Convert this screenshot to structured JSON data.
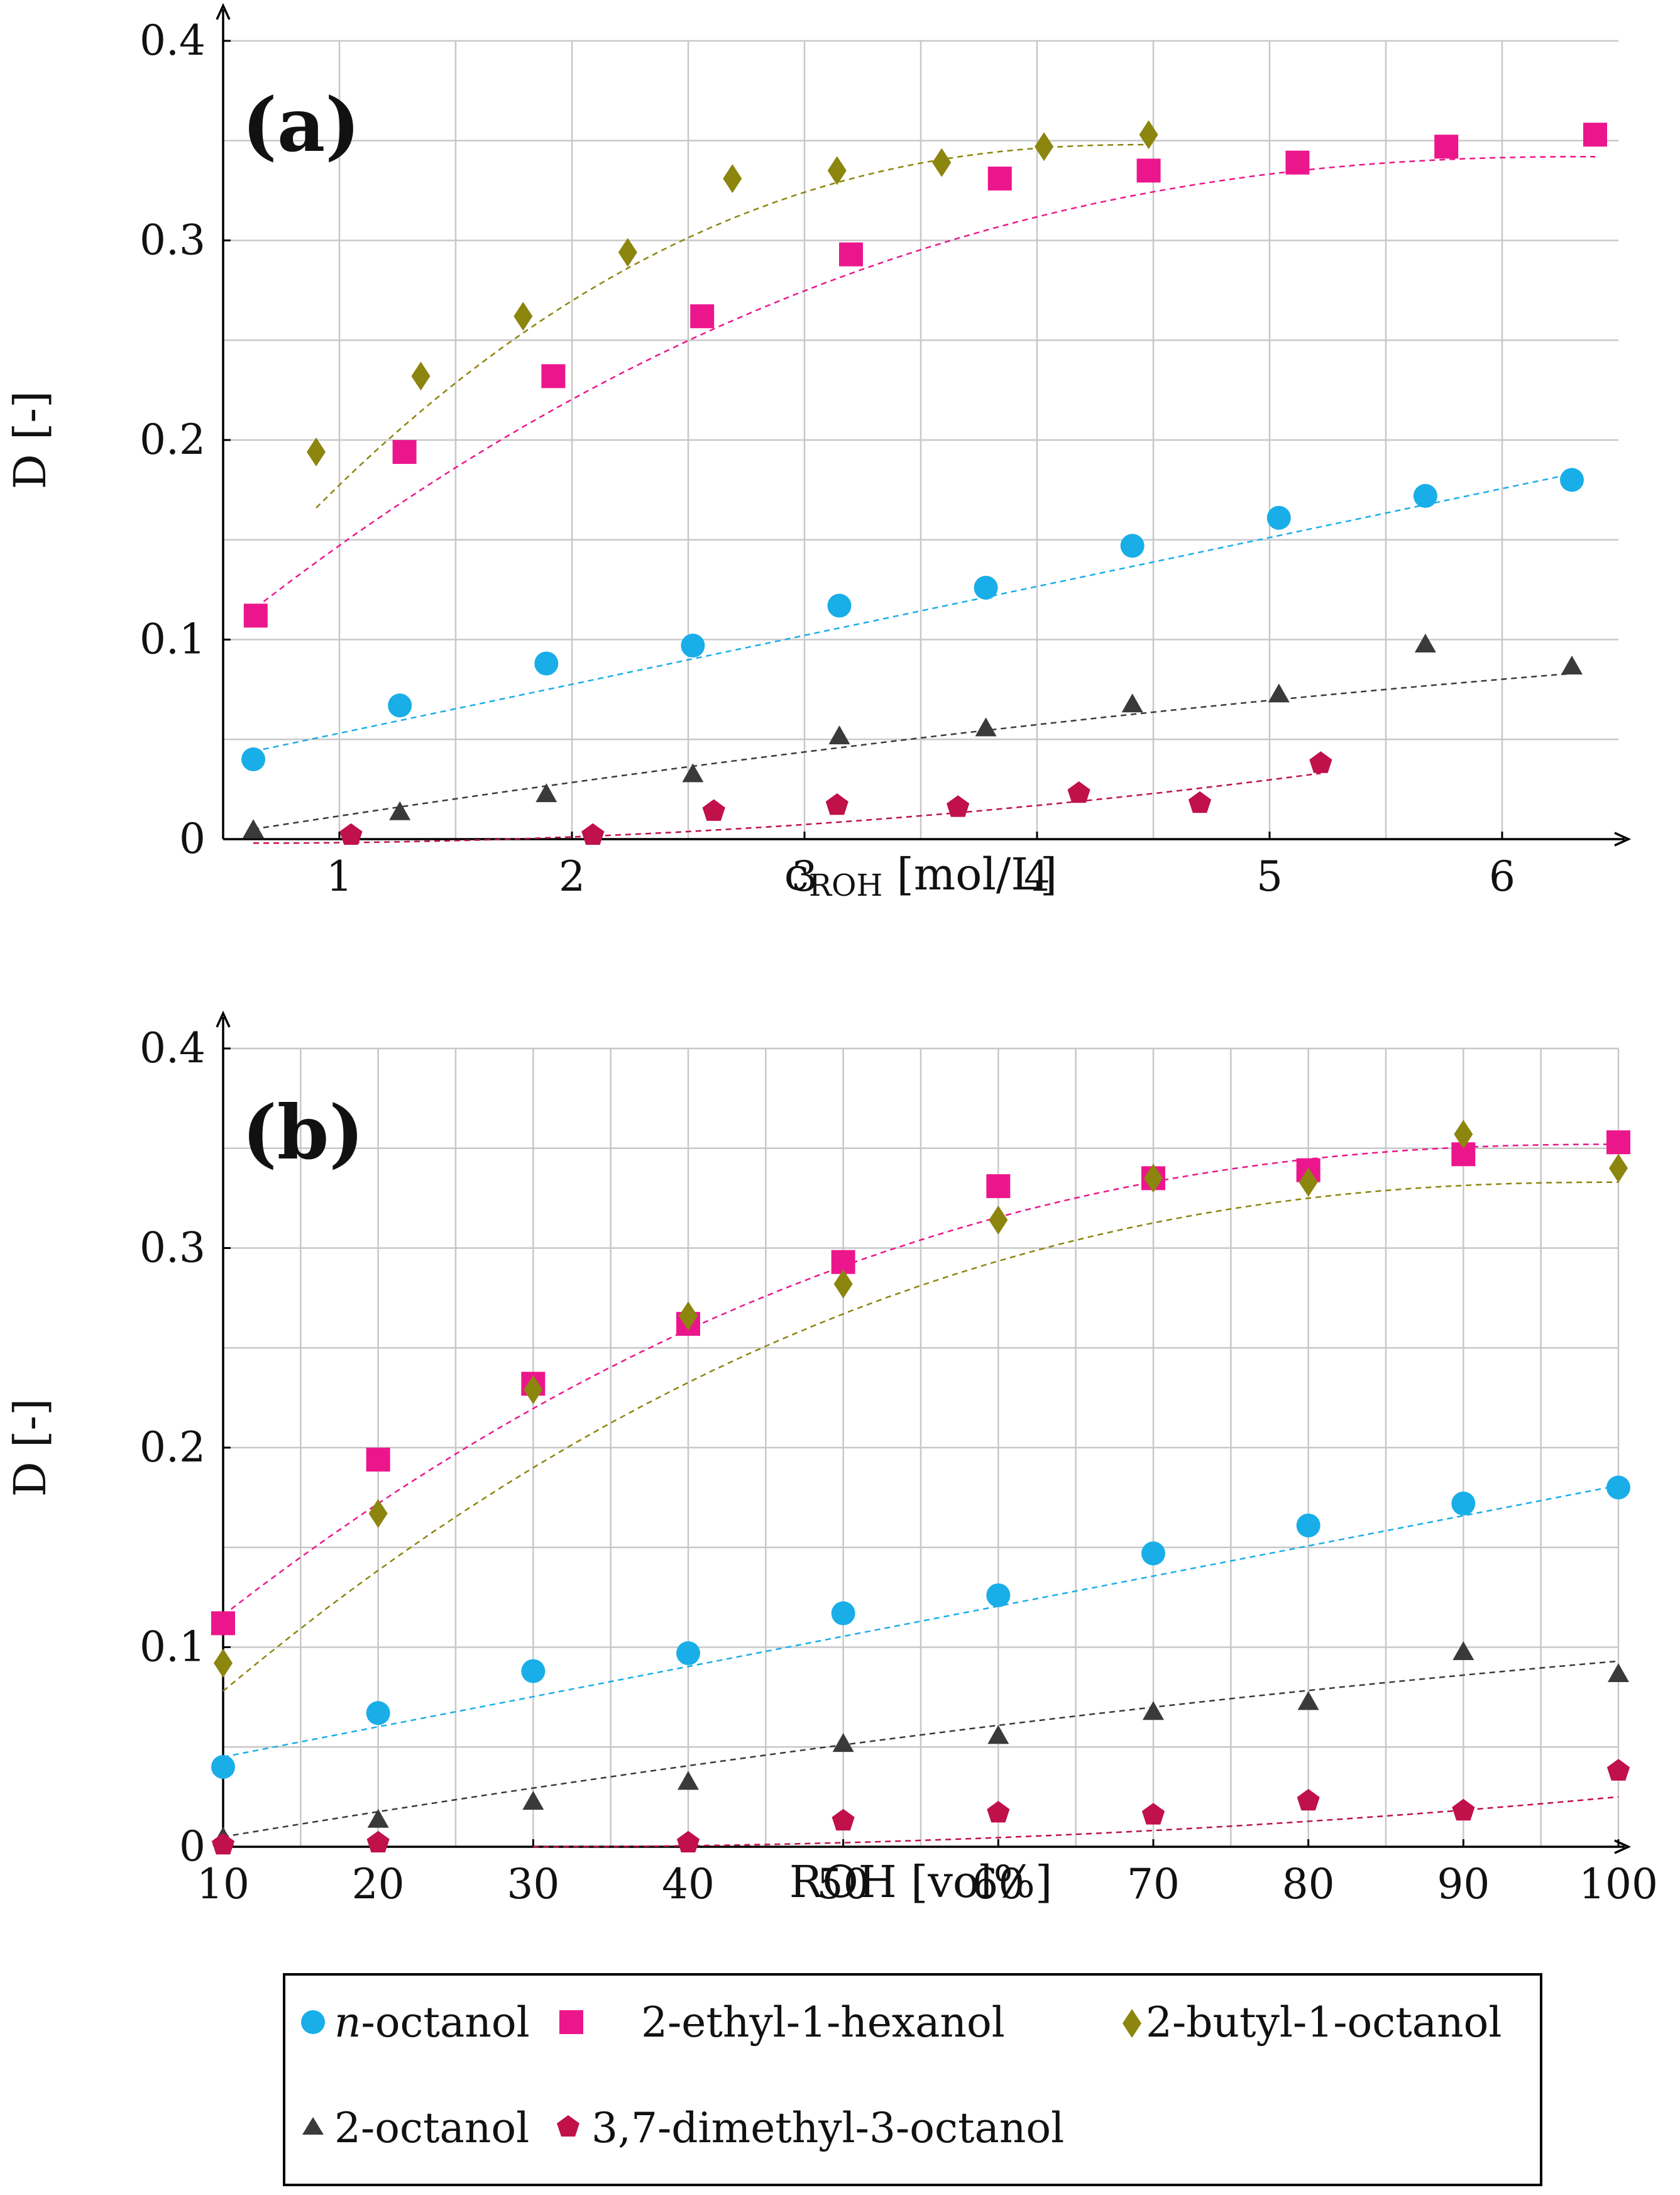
{
  "colors": {
    "n-octanol": "#19aee8",
    "2-ethyl-1-hexanol": "#ec168c",
    "2-butyl-1-octanol": "#8c850e",
    "2-octanol": "#3a3a3a",
    "3,7-dimethyl-3-octanol": "#c0114a"
  },
  "chart_data": [
    {
      "type": "scatter",
      "panel_label": "(a)",
      "xlabel_main": "c",
      "xlabel_sub": "ROH",
      "xlabel_unit": " [mol/L]",
      "ylabel": "D [-]",
      "xlim": [
        0.5,
        6.5
      ],
      "ylim": [
        0,
        0.4
      ],
      "xticks": [
        1,
        2,
        3,
        4,
        5,
        6
      ],
      "yticks": [
        0,
        0.1,
        0.2,
        0.3,
        0.4
      ],
      "ytick_labels": [
        "0",
        "0.1",
        "0.2",
        "0.3",
        "0.4"
      ],
      "x_minor_grid": [
        0.5,
        1.5,
        2.5,
        3.5,
        4.5,
        5.5
      ],
      "y_minor_grid": [
        0.05,
        0.15,
        0.25,
        0.35
      ],
      "grid": true,
      "series": [
        {
          "name": "n-octanol",
          "marker": "circle",
          "x": [
            0.63,
            1.26,
            1.89,
            2.52,
            3.15,
            3.78,
            4.41,
            5.04,
            5.67,
            6.3
          ],
          "y": [
            0.04,
            0.067,
            0.088,
            0.097,
            0.117,
            0.126,
            0.147,
            0.161,
            0.172,
            0.18
          ],
          "fit": {
            "x": [
              0.63,
              6.3
            ],
            "y0": 0.044,
            "y1": 0.183,
            "shape": "linear"
          }
        },
        {
          "name": "2-ethyl-1-hexanol",
          "marker": "square",
          "x": [
            0.64,
            1.28,
            1.92,
            2.56,
            3.2,
            3.84,
            4.48,
            5.12,
            5.76,
            6.4
          ],
          "y": [
            0.112,
            0.194,
            0.232,
            0.262,
            0.293,
            0.331,
            0.335,
            0.339,
            0.347,
            0.353
          ],
          "fit": {
            "x": [
              0.64,
              6.4
            ],
            "y0": 0.116,
            "y1": 0.342,
            "shape": "saturate"
          }
        },
        {
          "name": "2-butyl-1-octanol",
          "marker": "diamond",
          "x": [
            0.9,
            1.35,
            1.79,
            2.24,
            2.69,
            3.14,
            3.59,
            4.03,
            4.48
          ],
          "y": [
            0.194,
            0.232,
            0.262,
            0.294,
            0.331,
            0.335,
            0.339,
            0.347,
            0.353
          ],
          "fit": {
            "x": [
              0.9,
              4.48
            ],
            "y0": 0.166,
            "y1": 0.348,
            "shape": "saturate"
          }
        },
        {
          "name": "2-octanol",
          "marker": "triangle",
          "x": [
            0.63,
            1.26,
            1.89,
            2.52,
            3.15,
            3.78,
            4.41,
            5.04,
            5.67,
            6.3
          ],
          "y": [
            0.004,
            0.013,
            0.022,
            0.032,
            0.051,
            0.055,
            0.067,
            0.072,
            0.097,
            0.086
          ],
          "fit": {
            "x": [
              0.63,
              6.3
            ],
            "y0": 0.005,
            "y1": 0.083,
            "shape": "sigmoid"
          }
        },
        {
          "name": "3,7-dimethyl-3-octanol",
          "marker": "pentagon",
          "x": [
            1.05,
            2.09,
            2.61,
            3.14,
            3.66,
            4.18,
            4.7,
            5.22
          ],
          "y": [
            0.002,
            0.002,
            0.014,
            0.017,
            0.016,
            0.023,
            0.018,
            0.038
          ],
          "fit": {
            "x": [
              0.63,
              5.22
            ],
            "y0": -0.002,
            "y1": 0.033,
            "shape": "convex"
          }
        }
      ]
    },
    {
      "type": "scatter",
      "panel_label": "(b)",
      "xlabel": "ROH [vol%]",
      "ylabel": "D [-]",
      "xlim": [
        10,
        100
      ],
      "ylim": [
        0,
        0.4
      ],
      "xticks": [
        10,
        20,
        30,
        40,
        50,
        60,
        70,
        80,
        90,
        100
      ],
      "yticks": [
        0,
        0.1,
        0.2,
        0.3,
        0.4
      ],
      "ytick_labels": [
        "0",
        "0.1",
        "0.2",
        "0.3",
        "0.4"
      ],
      "x_minor_grid": [
        15,
        25,
        35,
        45,
        55,
        65,
        75,
        85,
        95
      ],
      "y_minor_grid": [
        0.05,
        0.15,
        0.25,
        0.35
      ],
      "grid": true,
      "series": [
        {
          "name": "n-octanol",
          "marker": "circle",
          "x": [
            10,
            20,
            30,
            40,
            50,
            60,
            70,
            80,
            90,
            100
          ],
          "y": [
            0.04,
            0.067,
            0.088,
            0.097,
            0.117,
            0.126,
            0.147,
            0.161,
            0.172,
            0.18
          ],
          "fit": {
            "x": [
              10,
              100
            ],
            "y0": 0.045,
            "y1": 0.181,
            "shape": "linear"
          }
        },
        {
          "name": "2-ethyl-1-hexanol",
          "marker": "square",
          "x": [
            10,
            20,
            30,
            40,
            50,
            60,
            70,
            80,
            90,
            100
          ],
          "y": [
            0.112,
            0.194,
            0.232,
            0.262,
            0.293,
            0.331,
            0.335,
            0.339,
            0.347,
            0.353
          ],
          "fit": {
            "x": [
              10,
              100
            ],
            "y0": 0.116,
            "y1": 0.352,
            "shape": "saturate"
          }
        },
        {
          "name": "2-butyl-1-octanol",
          "marker": "diamond",
          "x": [
            10,
            20,
            30,
            40,
            50,
            60,
            70,
            80,
            90,
            100
          ],
          "y": [
            0.092,
            0.167,
            0.229,
            0.266,
            0.282,
            0.314,
            0.335,
            0.333,
            0.357,
            0.34
          ],
          "fit": {
            "x": [
              10,
              100
            ],
            "y0": 0.078,
            "y1": 0.333,
            "shape": "saturate"
          }
        },
        {
          "name": "2-octanol",
          "marker": "triangle",
          "x": [
            10,
            20,
            30,
            40,
            50,
            60,
            70,
            80,
            90,
            100
          ],
          "y": [
            0.004,
            0.013,
            0.022,
            0.032,
            0.051,
            0.055,
            0.067,
            0.072,
            0.097,
            0.086
          ],
          "fit": {
            "x": [
              10,
              100
            ],
            "y0": 0.005,
            "y1": 0.093,
            "shape": "sigmoid"
          }
        },
        {
          "name": "3,7-dimethyl-3-octanol",
          "marker": "pentagon",
          "x": [
            10,
            20,
            40,
            50,
            60,
            70,
            80,
            90,
            100
          ],
          "y": [
            0.001,
            0.002,
            0.002,
            0.013,
            0.017,
            0.016,
            0.023,
            0.018,
            0.038
          ],
          "fit": {
            "x": [
              30,
              100
            ],
            "y0": 0.0,
            "y1": 0.025,
            "shape": "convex"
          }
        }
      ]
    }
  ],
  "legend": {
    "placement": "bottom",
    "entries": [
      {
        "series": "n-octanol",
        "marker": "circle",
        "italic_prefix": "n",
        "label_rest": "-octanol"
      },
      {
        "series": "2-ethyl-1-hexanol",
        "marker": "square",
        "label": "2-ethyl-1-hexanol"
      },
      {
        "series": "2-butyl-1-octanol",
        "marker": "diamond",
        "label": "2-butyl-1-octanol"
      },
      {
        "series": "2-octanol",
        "marker": "triangle",
        "label": "2-octanol"
      },
      {
        "series": "3,7-dimethyl-3-octanol",
        "marker": "pentagon",
        "label": "3,7-dimethyl-3-octanol"
      }
    ]
  }
}
